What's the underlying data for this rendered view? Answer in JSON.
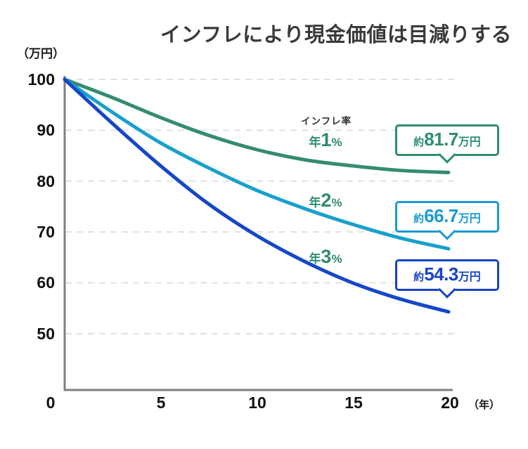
{
  "title": "インフレにより現金価値は目減りする",
  "y_axis": {
    "unit": "（万円）",
    "ticks": [
      "100",
      "90",
      "80",
      "70",
      "60",
      "50"
    ]
  },
  "x_axis": {
    "unit": "（年）",
    "ticks": [
      "0",
      "5",
      "10",
      "15",
      "20"
    ]
  },
  "legend_heading": "インフレ率",
  "colors": {
    "title_text": "#3a3a3a",
    "axis": "#7f7f7f",
    "gridline": "#e1e1e1",
    "tick_text": "#111111",
    "label_green": "#2e8b70"
  },
  "chart_data": {
    "type": "line",
    "title": "インフレにより現金価値は目減りする",
    "xlabel": "年",
    "ylabel": "万円",
    "xlim": [
      0,
      20
    ],
    "ytick_range": [
      50,
      100
    ],
    "grid": "horizontal-dashed",
    "legend_position": "inline-labels-on-curves",
    "x": [
      0,
      2.5,
      5,
      7.5,
      10,
      12.5,
      15,
      17.5,
      20
    ],
    "series": [
      {
        "id": "1pct",
        "label_prefix": "年",
        "label_num": "1",
        "label_pct": "%",
        "name": "年1%",
        "color": "#348c6e",
        "label_color": "#2e8b70",
        "callout_color": "#2e8d71",
        "values": [
          100,
          96.4,
          92.5,
          89.0,
          86.2,
          84.2,
          83.0,
          82.1,
          81.7
        ],
        "final_value": 81.7,
        "callout_prefix": "約",
        "callout_value": "81.7",
        "callout_suffix": "万円",
        "end_label": "約81.7万円"
      },
      {
        "id": "2pct",
        "label_prefix": "年",
        "label_num": "2",
        "label_pct": "%",
        "name": "年2%",
        "color": "#18a0cc",
        "label_color": "#2e8b70",
        "callout_color": "#1a9bd2",
        "values": [
          100,
          93.5,
          87.5,
          82.6,
          78.2,
          74.6,
          71.5,
          68.8,
          66.7
        ],
        "final_value": 66.7,
        "callout_prefix": "約",
        "callout_value": "66.7",
        "callout_suffix": "万円",
        "end_label": "約66.7万円"
      },
      {
        "id": "3pct",
        "label_prefix": "年",
        "label_num": "3",
        "label_pct": "%",
        "name": "年3%",
        "color": "#1647c8",
        "label_color": "#2e8b70",
        "callout_color": "#1743c5",
        "values": [
          100,
          91.3,
          83.0,
          75.5,
          69.3,
          64.2,
          60.0,
          56.8,
          54.3
        ],
        "final_value": 54.3,
        "callout_prefix": "約",
        "callout_value": "54.3",
        "callout_suffix": "万円",
        "end_label": "約54.3万円"
      }
    ]
  }
}
